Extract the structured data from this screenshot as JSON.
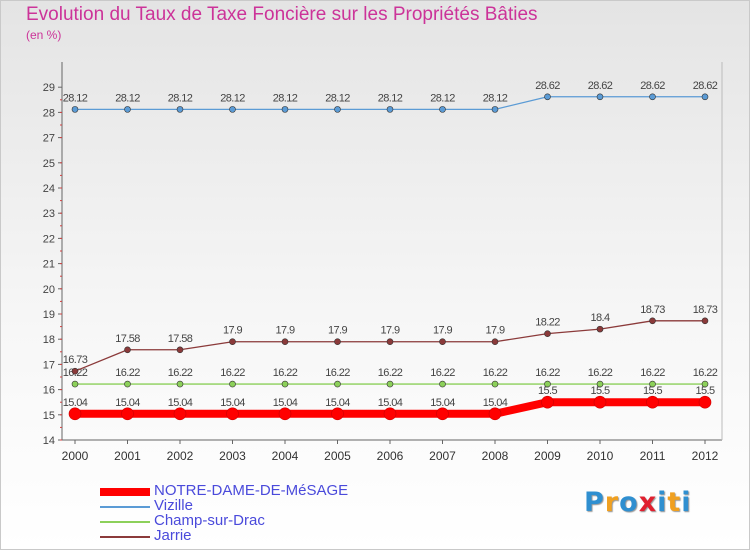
{
  "title": "Evolution du Taux de Taxe Foncière sur les Propriétés Bâties",
  "unit_label": "(en %)",
  "logo": {
    "letters": [
      "P",
      "r",
      "o",
      "x",
      "i",
      "t",
      "i"
    ],
    "colors": [
      "#2f8fd0",
      "#f0a020",
      "#2f8fd0",
      "#e0202f",
      "#2f8fd0",
      "#f0a020",
      "#2f8fd0"
    ]
  },
  "chart_data": {
    "type": "line",
    "x": [
      "2000",
      "2001",
      "2002",
      "2003",
      "2004",
      "2005",
      "2006",
      "2007",
      "2008",
      "2009",
      "2010",
      "2011",
      "2012"
    ],
    "yticks": [
      14,
      15,
      16,
      17,
      18,
      19,
      20,
      21,
      22,
      23,
      24,
      25,
      27,
      28,
      29
    ],
    "axis_break": {
      "after": 25,
      "before": 27
    },
    "legend_position": "bottom-left",
    "series": [
      {
        "name": "NOTRE-DAME-DE-MéSAGE",
        "color": "#ff0000",
        "values": [
          15.04,
          15.04,
          15.04,
          15.04,
          15.04,
          15.04,
          15.04,
          15.04,
          15.04,
          15.5,
          15.5,
          15.5,
          15.5
        ],
        "labels": [
          "15.04",
          "15.04",
          "15.04",
          "15.04",
          "15.04",
          "15.04",
          "15.04",
          "15.04",
          "15.04",
          "15.5",
          "15.5",
          "15.5",
          "15.5"
        ]
      },
      {
        "name": "Vizille",
        "color": "#5b9bd5",
        "values": [
          28.12,
          28.12,
          28.12,
          28.12,
          28.12,
          28.12,
          28.12,
          28.12,
          28.12,
          28.62,
          28.62,
          28.62,
          28.62
        ],
        "labels": [
          "28.12",
          "28.12",
          "28.12",
          "28.12",
          "28.12",
          "28.12",
          "28.12",
          "28.12",
          "28.12",
          "28.62",
          "28.62",
          "28.62",
          "28.62"
        ]
      },
      {
        "name": "Champ-sur-Drac",
        "color": "#8cd05a",
        "values": [
          16.22,
          16.22,
          16.22,
          16.22,
          16.22,
          16.22,
          16.22,
          16.22,
          16.22,
          16.22,
          16.22,
          16.22,
          16.22
        ],
        "labels": [
          "16.22",
          "16.22",
          "16.22",
          "16.22",
          "16.22",
          "16.22",
          "16.22",
          "16.22",
          "16.22",
          "16.22",
          "16.22",
          "16.22",
          "16.22"
        ]
      },
      {
        "name": "Jarrie",
        "color": "#8b3a3a",
        "values": [
          16.73,
          17.58,
          17.58,
          17.9,
          17.9,
          17.9,
          17.9,
          17.9,
          17.9,
          18.22,
          18.4,
          18.73,
          18.73
        ],
        "labels": [
          "16.73",
          "17.58",
          "17.58",
          "17.9",
          "17.9",
          "17.9",
          "17.9",
          "17.9",
          "17.9",
          "18.22",
          "18.4",
          "18.73",
          "18.73"
        ]
      }
    ]
  }
}
